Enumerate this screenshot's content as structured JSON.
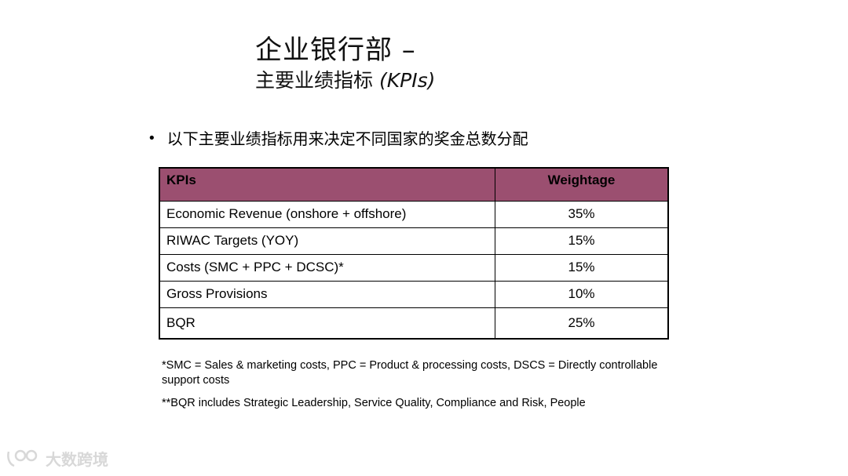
{
  "title": {
    "line1": "企业银行部 –",
    "line2_cn": "主要业绩指标",
    "line2_suffix": "(KPIs)"
  },
  "bullet": "以下主要业绩指标用来决定不同国家的奖金总数分配",
  "table": {
    "headers": [
      "KPIs",
      "Weightage"
    ],
    "header_color": "#9b4f70",
    "rows": [
      {
        "kpi": "Economic Revenue (onshore + offshore)",
        "weight": "35%"
      },
      {
        "kpi": "RIWAC Targets (YOY)",
        "weight": "15%"
      },
      {
        "kpi": "Costs (SMC + PPC + DCSC)*",
        "weight": "15%"
      },
      {
        "kpi": "Gross Provisions",
        "weight": "10%"
      },
      {
        "kpi": "BQR",
        "weight": "25%"
      }
    ]
  },
  "notes": {
    "note1": "*SMC = Sales & marketing costs, PPC = Product & processing costs, DSCS = Directly controllable support costs",
    "note2": "**BQR includes Strategic Leadership, Service Quality, Compliance and Risk, People"
  },
  "watermark": {
    "text": "大数跨境"
  }
}
